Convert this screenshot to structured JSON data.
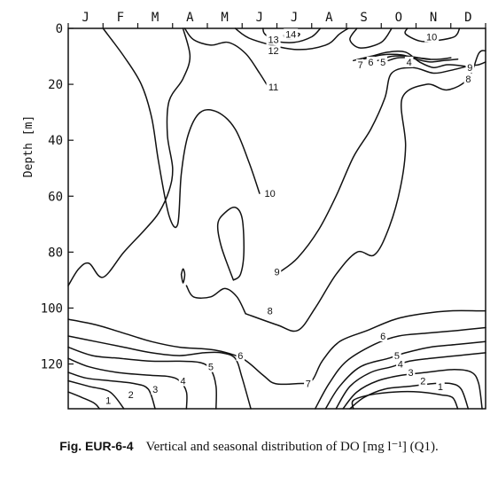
{
  "chart_data": {
    "type": "contour",
    "x_axis": {
      "position": "top",
      "months": [
        "J",
        "F",
        "M",
        "A",
        "M",
        "J",
        "J",
        "A",
        "S",
        "O",
        "N",
        "D"
      ]
    },
    "y_axis": {
      "label": "Depth [m]",
      "ticks": [
        0,
        20,
        40,
        60,
        80,
        100,
        120
      ],
      "range": [
        0,
        136
      ],
      "inverted": true
    },
    "grid": false,
    "contour_levels": [
      1,
      2,
      3,
      4,
      5,
      6,
      7,
      8,
      9,
      10,
      11,
      12,
      13,
      14
    ],
    "contour_labels": [
      {
        "value": "14",
        "month": 6.4,
        "depth": 2
      },
      {
        "value": "13",
        "month": 5.9,
        "depth": 4
      },
      {
        "value": "12",
        "month": 5.9,
        "depth": 8
      },
      {
        "value": "11",
        "month": 5.9,
        "depth": 21
      },
      {
        "value": "10",
        "month": 10.45,
        "depth": 3
      },
      {
        "value": "9",
        "month": 11.55,
        "depth": 14
      },
      {
        "value": "8",
        "month": 11.5,
        "depth": 18
      },
      {
        "value": "7",
        "month": 8.4,
        "depth": 13
      },
      {
        "value": "6",
        "month": 8.7,
        "depth": 12
      },
      {
        "value": "5",
        "month": 9.05,
        "depth": 12
      },
      {
        "value": "4",
        "month": 9.8,
        "depth": 12
      },
      {
        "value": "10",
        "month": 5.8,
        "depth": 59
      },
      {
        "value": "9",
        "month": 6.0,
        "depth": 87
      },
      {
        "value": "8",
        "month": 5.8,
        "depth": 101
      },
      {
        "value": "7",
        "month": 6.9,
        "depth": 127
      },
      {
        "value": "6",
        "month": 4.95,
        "depth": 117
      },
      {
        "value": "5",
        "month": 4.1,
        "depth": 121
      },
      {
        "value": "4",
        "month": 3.3,
        "depth": 126
      },
      {
        "value": "3",
        "month": 2.5,
        "depth": 129
      },
      {
        "value": "2",
        "month": 1.8,
        "depth": 131
      },
      {
        "value": "1",
        "month": 1.15,
        "depth": 133
      },
      {
        "value": "6",
        "month": 9.05,
        "depth": 110
      },
      {
        "value": "5",
        "month": 9.45,
        "depth": 117
      },
      {
        "value": "4",
        "month": 9.55,
        "depth": 120
      },
      {
        "value": "3",
        "month": 9.85,
        "depth": 123
      },
      {
        "value": "2",
        "month": 10.2,
        "depth": 126
      },
      {
        "value": "1",
        "month": 10.7,
        "depth": 128
      }
    ],
    "contours": [
      {
        "level": "14",
        "points": [
          [
            6.2,
            2.5
          ],
          [
            6.4,
            1.5
          ],
          [
            6.65,
            2
          ],
          [
            6.5,
            3.5
          ],
          [
            6.25,
            3.5
          ],
          [
            6.2,
            2.5
          ]
        ]
      },
      {
        "level": "13",
        "points": [
          [
            5.6,
            0
          ],
          [
            5.65,
            2
          ],
          [
            5.95,
            4.5
          ],
          [
            6.5,
            5
          ],
          [
            7.0,
            3
          ],
          [
            7.25,
            0
          ]
        ]
      },
      {
        "level": "12",
        "points": [
          [
            4.8,
            0
          ],
          [
            5.3,
            4
          ],
          [
            6.5,
            7.5
          ],
          [
            7.4,
            6
          ],
          [
            7.8,
            2
          ],
          [
            8.05,
            0
          ]
        ]
      },
      {
        "level": "11",
        "points": [
          [
            3.35,
            0
          ],
          [
            3.6,
            4
          ],
          [
            4.1,
            6
          ],
          [
            4.6,
            5
          ],
          [
            5.1,
            9
          ],
          [
            5.5,
            16
          ],
          [
            5.75,
            21
          ]
        ]
      },
      {
        "level": "11b",
        "points": [
          [
            8.3,
            0
          ],
          [
            8.1,
            4
          ],
          [
            8.4,
            7
          ],
          [
            9.0,
            5
          ],
          [
            9.3,
            0
          ]
        ]
      },
      {
        "level": "10",
        "points": [
          [
            1.0,
            0
          ],
          [
            1.6,
            10
          ],
          [
            2.1,
            20
          ],
          [
            2.4,
            32
          ],
          [
            2.6,
            48
          ],
          [
            2.9,
            67
          ],
          [
            3.15,
            70
          ],
          [
            3.25,
            52
          ],
          [
            3.45,
            38
          ],
          [
            3.8,
            30
          ],
          [
            4.3,
            30
          ],
          [
            4.8,
            36
          ],
          [
            5.2,
            48
          ],
          [
            5.5,
            59
          ]
        ]
      },
      {
        "level": "10b",
        "points": [
          [
            9.75,
            0
          ],
          [
            9.7,
            2
          ],
          [
            10.1,
            4.5
          ],
          [
            10.5,
            4.5
          ],
          [
            11.1,
            3
          ],
          [
            11.25,
            0
          ]
        ]
      },
      {
        "level": "9",
        "points": [
          [
            6.1,
            87
          ],
          [
            6.6,
            82
          ],
          [
            7.2,
            72
          ],
          [
            7.7,
            60
          ],
          [
            8.2,
            46
          ],
          [
            8.7,
            36
          ],
          [
            9.1,
            25
          ],
          [
            9.3,
            16
          ],
          [
            9.9,
            14
          ],
          [
            10.5,
            16
          ],
          [
            11.0,
            15
          ],
          [
            11.5,
            13.5
          ],
          [
            11.8,
            13
          ],
          [
            12.0,
            12
          ]
        ]
      },
      {
        "level": "9b",
        "points": [
          [
            4.75,
            90
          ],
          [
            4.4,
            78
          ],
          [
            4.3,
            70
          ],
          [
            4.5,
            66
          ],
          [
            4.8,
            64
          ],
          [
            5.0,
            68
          ],
          [
            5.05,
            80
          ],
          [
            4.95,
            88
          ],
          [
            4.75,
            90
          ]
        ]
      },
      {
        "level": "8",
        "points": [
          [
            0,
            92
          ],
          [
            0.3,
            86
          ],
          [
            0.6,
            84
          ],
          [
            1.0,
            89
          ],
          [
            1.6,
            80
          ],
          [
            2.2,
            72
          ],
          [
            2.6,
            66
          ],
          [
            2.9,
            58
          ],
          [
            3.0,
            50
          ],
          [
            2.85,
            38
          ],
          [
            2.9,
            26
          ],
          [
            3.3,
            18
          ],
          [
            3.5,
            10
          ],
          [
            3.3,
            0
          ]
        ]
      },
      {
        "level": "8b",
        "points": [
          [
            5.1,
            102
          ],
          [
            6.0,
            106
          ],
          [
            6.6,
            108
          ],
          [
            7.1,
            100
          ],
          [
            7.7,
            88
          ],
          [
            8.3,
            80
          ],
          [
            8.8,
            81
          ],
          [
            9.2,
            72
          ],
          [
            9.55,
            57
          ],
          [
            9.7,
            42
          ],
          [
            9.6,
            25
          ],
          [
            10.3,
            20
          ],
          [
            10.9,
            22
          ],
          [
            11.5,
            18
          ],
          [
            11.8,
            9
          ],
          [
            12.0,
            8
          ]
        ]
      },
      {
        "level": "8c",
        "points": [
          [
            3.4,
            92
          ],
          [
            3.6,
            96
          ],
          [
            4.1,
            96
          ],
          [
            4.5,
            93
          ],
          [
            4.85,
            96
          ],
          [
            5.1,
            102
          ]
        ]
      },
      {
        "level": "8d",
        "points": [
          [
            3.25,
            88
          ],
          [
            3.3,
            86
          ],
          [
            3.35,
            88
          ],
          [
            3.3,
            91
          ],
          [
            3.25,
            88
          ]
        ]
      },
      {
        "level": "7",
        "points": [
          [
            0,
            104
          ],
          [
            0.8,
            106
          ],
          [
            1.6,
            109
          ],
          [
            2.4,
            112
          ],
          [
            3.2,
            114
          ],
          [
            4.2,
            115
          ],
          [
            5.0,
            118
          ],
          [
            5.6,
            124
          ],
          [
            5.95,
            127
          ],
          [
            6.6,
            127
          ],
          [
            7.0,
            126
          ],
          [
            7.3,
            119
          ],
          [
            7.8,
            112
          ],
          [
            8.6,
            108
          ],
          [
            9.4,
            104
          ],
          [
            10.2,
            102
          ],
          [
            11.0,
            101
          ],
          [
            11.8,
            101
          ],
          [
            12.0,
            101
          ]
        ]
      },
      {
        "level": "7b",
        "points": [
          [
            8.2,
            11.5
          ],
          [
            8.7,
            10
          ],
          [
            9.2,
            8.5
          ],
          [
            9.7,
            8.5
          ],
          [
            10.1,
            12
          ],
          [
            10.5,
            14
          ],
          [
            10.9,
            13
          ],
          [
            11.4,
            13.5
          ]
        ]
      },
      {
        "level": "6",
        "points": [
          [
            0,
            110
          ],
          [
            0.8,
            112
          ],
          [
            1.6,
            114
          ],
          [
            2.4,
            116
          ],
          [
            3.2,
            117
          ],
          [
            3.9,
            116
          ],
          [
            4.4,
            116
          ],
          [
            4.8,
            118
          ],
          [
            5.0,
            125
          ],
          [
            5.25,
            136
          ]
        ]
      },
      {
        "level": "6b",
        "points": [
          [
            7.1,
            136
          ],
          [
            7.5,
            127
          ],
          [
            8.0,
            119
          ],
          [
            8.8,
            113
          ],
          [
            9.5,
            110
          ],
          [
            10.3,
            109
          ],
          [
            11.2,
            108
          ],
          [
            12.0,
            107
          ]
        ]
      },
      {
        "level": "6c",
        "points": [
          [
            8.5,
            11
          ],
          [
            9.0,
            9.5
          ],
          [
            9.6,
            9.5
          ],
          [
            10.0,
            11
          ],
          [
            10.4,
            12
          ],
          [
            10.8,
            11.5
          ],
          [
            11.2,
            11
          ]
        ]
      },
      {
        "level": "5",
        "points": [
          [
            0,
            114
          ],
          [
            0.7,
            117
          ],
          [
            1.5,
            118
          ],
          [
            2.4,
            119
          ],
          [
            3.2,
            119
          ],
          [
            3.8,
            119.5
          ],
          [
            4.1,
            122
          ],
          [
            4.25,
            128
          ],
          [
            4.25,
            136
          ]
        ]
      },
      {
        "level": "5b",
        "points": [
          [
            7.4,
            136
          ],
          [
            7.8,
            128
          ],
          [
            8.4,
            121
          ],
          [
            9.2,
            118
          ],
          [
            9.7,
            116
          ],
          [
            10.4,
            114
          ],
          [
            11.2,
            113
          ],
          [
            12.0,
            112
          ]
        ]
      },
      {
        "level": "5c",
        "points": [
          [
            8.9,
            11.5
          ],
          [
            9.3,
            10
          ],
          [
            9.8,
            10
          ],
          [
            10.3,
            11
          ],
          [
            10.7,
            11
          ],
          [
            11.0,
            10.5
          ]
        ]
      },
      {
        "level": "4",
        "points": [
          [
            0,
            118
          ],
          [
            0.6,
            121
          ],
          [
            1.4,
            123
          ],
          [
            2.3,
            124
          ],
          [
            2.9,
            124.5
          ],
          [
            3.2,
            126
          ],
          [
            3.4,
            130
          ],
          [
            3.4,
            136
          ]
        ]
      },
      {
        "level": "4b",
        "points": [
          [
            7.7,
            136
          ],
          [
            8.1,
            128
          ],
          [
            8.7,
            123
          ],
          [
            9.3,
            121
          ],
          [
            9.8,
            119
          ],
          [
            10.4,
            118
          ],
          [
            11.2,
            117
          ],
          [
            12.0,
            116
          ]
        ]
      },
      {
        "level": "4c",
        "points": [
          [
            9.2,
            11.5
          ],
          [
            9.5,
            10.5
          ],
          [
            10.0,
            10.5
          ],
          [
            10.4,
            11
          ]
        ]
      },
      {
        "level": "3",
        "points": [
          [
            0,
            123
          ],
          [
            0.5,
            125
          ],
          [
            1.2,
            126
          ],
          [
            1.9,
            127
          ],
          [
            2.3,
            129
          ],
          [
            2.5,
            136
          ]
        ]
      },
      {
        "level": "3b",
        "points": [
          [
            7.9,
            136
          ],
          [
            8.3,
            130
          ],
          [
            8.9,
            126
          ],
          [
            9.6,
            124
          ],
          [
            10.3,
            123
          ],
          [
            11.1,
            122
          ],
          [
            11.6,
            123
          ],
          [
            11.8,
            127
          ],
          [
            11.9,
            136
          ]
        ]
      },
      {
        "level": "2",
        "points": [
          [
            0,
            126
          ],
          [
            0.6,
            128
          ],
          [
            1.2,
            130
          ],
          [
            1.6,
            136
          ]
        ]
      },
      {
        "level": "2b",
        "points": [
          [
            8.1,
            136
          ],
          [
            8.5,
            132
          ],
          [
            9.1,
            129
          ],
          [
            9.8,
            128
          ],
          [
            10.5,
            127
          ],
          [
            11.0,
            127
          ],
          [
            11.3,
            129
          ],
          [
            11.5,
            136
          ]
        ]
      },
      {
        "level": "1",
        "points": [
          [
            0,
            130
          ],
          [
            0.4,
            132
          ],
          [
            0.75,
            134
          ],
          [
            0.9,
            136
          ]
        ]
      },
      {
        "level": "1b",
        "points": [
          [
            8.2,
            136
          ],
          [
            8.2,
            133
          ],
          [
            8.7,
            131
          ],
          [
            9.4,
            130
          ],
          [
            10.1,
            130
          ],
          [
            10.7,
            131
          ],
          [
            11.05,
            132
          ],
          [
            11.2,
            136
          ]
        ]
      }
    ]
  },
  "caption": {
    "label": "Fig. EUR-6-4",
    "text": "Vertical and seasonal distribution of DO [mg l⁻¹] (Q1)."
  }
}
